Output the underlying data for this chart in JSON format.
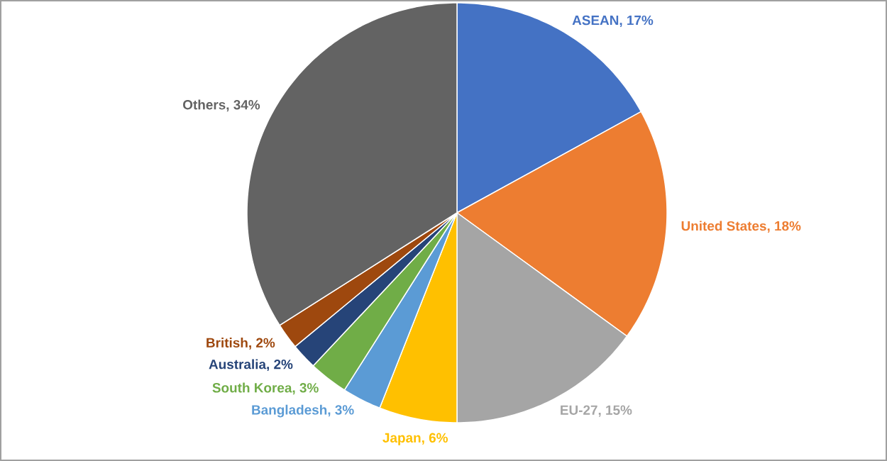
{
  "chart_data": {
    "type": "pie",
    "categories": [
      "ASEAN",
      "United States",
      "EU-27",
      "Japan",
      "Bangladesh",
      "South Korea",
      "Australia",
      "British",
      "Others"
    ],
    "values": [
      17,
      18,
      15,
      6,
      3,
      3,
      2,
      2,
      34
    ],
    "value_labels": [
      ", 17%",
      ", 18%",
      ", 15%",
      ", 6%",
      ", 3%",
      ", 3%",
      ", 2%",
      ", 2%",
      ", 34%"
    ],
    "colors": [
      "#4472c4",
      "#ed7d31",
      "#a5a5a5",
      "#ffc000",
      "#5b9bd5",
      "#70ad47",
      "#264478",
      "#9e480e",
      "#636363"
    ]
  }
}
